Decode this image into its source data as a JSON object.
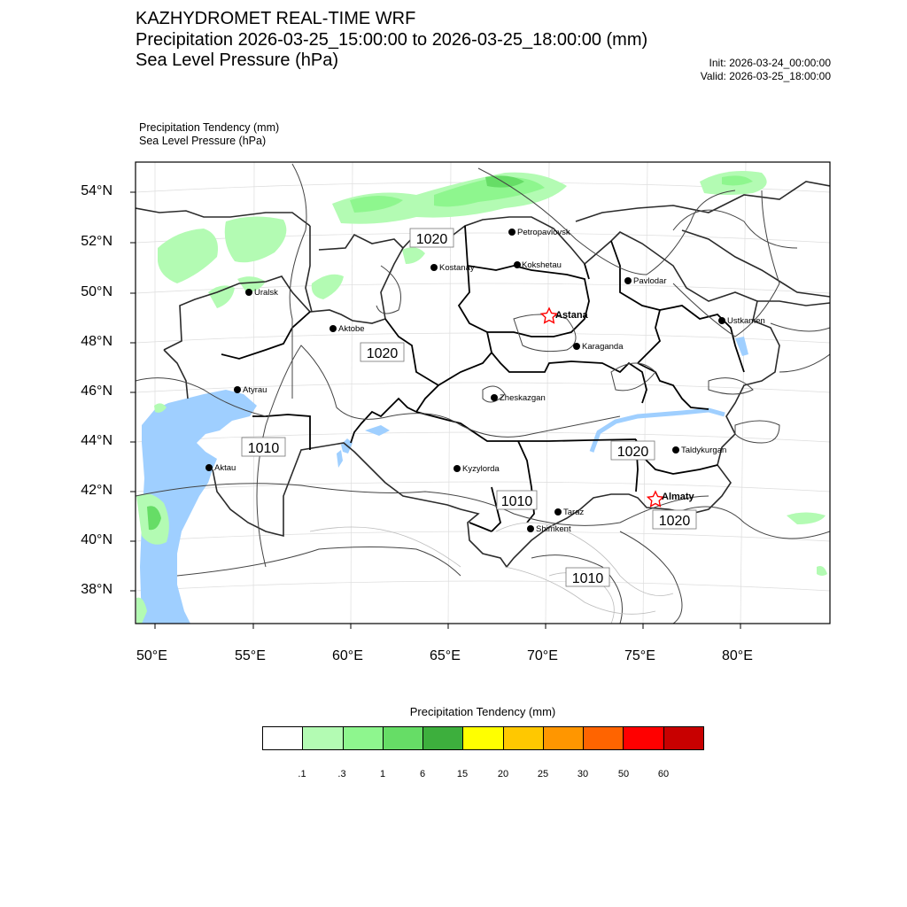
{
  "header": {
    "line1": "KAZHYDROMET REAL-TIME WRF",
    "line2": "Precipitation 2026-03-25_15:00:00 to 2026-03-25_18:00:00 (mm)",
    "line3": "Sea Level Pressure  (hPa)",
    "init": "Init: 2026-03-24_00:00:00",
    "valid": "Valid: 2026-03-25_18:00:00"
  },
  "subtitle": {
    "line1": "Precipitation Tendency   (mm)",
    "line2": "Sea Level Pressure   (hPa)"
  },
  "axes": {
    "lat_labels": [
      "54°N",
      "52°N",
      "50°N",
      "48°N",
      "46°N",
      "44°N",
      "42°N",
      "40°N",
      "38°N"
    ],
    "lon_labels": [
      "50°E",
      "55°E",
      "60°E",
      "65°E",
      "70°E",
      "75°E",
      "80°E"
    ]
  },
  "cities": {
    "petropavlovsk": "Petropavlovsk",
    "kostanay": "Kostanay",
    "kokshetau": "Kokshetau",
    "uralsk": "Uralsk",
    "pavlodar": "Pavlodar",
    "astana": "Astana",
    "aktobe": "Aktobe",
    "ustkamen": "Ustkamen",
    "karaganda": "Karaganda",
    "atyrau": "Atyrau",
    "zheskazgan": "Zheskazgan",
    "taldykurgan": "Taldykurgan",
    "aktau": "Aktau",
    "kyzylorda": "Kyzylorda",
    "almaty": "Almaty",
    "taraz": "Taraz",
    "shimkent": "Shimkent"
  },
  "isobars": {
    "l1": "1020",
    "l2": "1020",
    "l3": "1010",
    "l4": "1020",
    "l5": "1010",
    "l6": "1020",
    "l7": "1010"
  },
  "legend": {
    "title": "Precipitation Tendency (mm)",
    "colors": [
      "#ffffff",
      "#b3fbb3",
      "#8ef68e",
      "#66dd66",
      "#3daf3d",
      "#ffff00",
      "#ffc800",
      "#ff9600",
      "#ff6400",
      "#ff0000",
      "#c80000"
    ],
    "labels": [
      ".1",
      ".3",
      "1",
      "6",
      "15",
      "20",
      "25",
      "30",
      "50",
      "60"
    ]
  },
  "palette": {
    "water": "#9fcfff",
    "precip_light": "#b3fbb3",
    "precip_mid": "#8ef68e",
    "precip_heavy": "#66dd66",
    "astana_star": "#ff0000"
  }
}
